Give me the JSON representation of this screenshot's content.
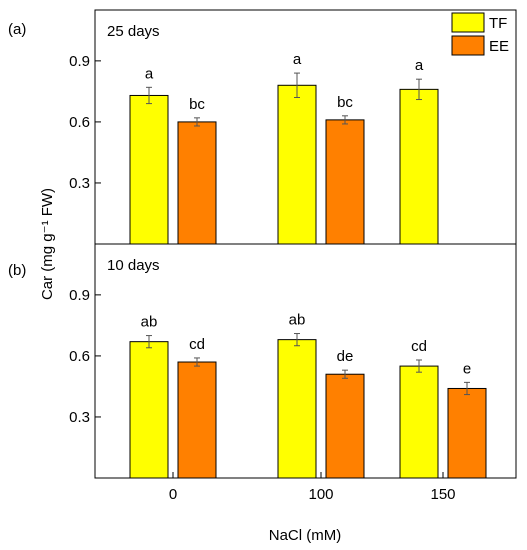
{
  "figure": {
    "y_axis_label": "Car (mg g⁻¹ FW)",
    "x_axis_label": "NaCl (mM)",
    "x_ticks": [
      "0",
      "100",
      "150"
    ],
    "legend": [
      {
        "name": "TF",
        "color": "#ffff00"
      },
      {
        "name": "EE",
        "color": "#ff8000"
      }
    ]
  },
  "chart_data": [
    {
      "type": "bar",
      "panel_label": "(a)",
      "title": "25 days",
      "categories": [
        "0",
        "100",
        "150"
      ],
      "ylim": [
        0,
        1.15
      ],
      "yticks": [
        "0.3",
        "0.6",
        "0.9"
      ],
      "series": [
        {
          "name": "TF",
          "color": "#ffff00",
          "values": [
            0.73,
            0.78,
            0.76
          ],
          "errors": [
            0.04,
            0.06,
            0.05
          ],
          "letters": [
            "a",
            "a",
            "a"
          ]
        },
        {
          "name": "EE",
          "color": "#ff8000",
          "values": [
            0.6,
            0.61,
            null
          ],
          "errors": [
            0.02,
            0.02,
            null
          ],
          "letters": [
            "bc",
            "bc",
            null
          ]
        }
      ],
      "legend_position": "top-right"
    },
    {
      "type": "bar",
      "panel_label": "(b)",
      "title": "10 days",
      "categories": [
        "0",
        "100",
        "150"
      ],
      "ylim": [
        0,
        1.15
      ],
      "yticks": [
        "0.3",
        "0.6",
        "0.9"
      ],
      "series": [
        {
          "name": "TF",
          "color": "#ffff00",
          "values": [
            0.67,
            0.68,
            0.55
          ],
          "errors": [
            0.03,
            0.03,
            0.03
          ],
          "letters": [
            "ab",
            "ab",
            "cd"
          ]
        },
        {
          "name": "EE",
          "color": "#ff8000",
          "values": [
            0.57,
            0.51,
            0.44
          ],
          "errors": [
            0.02,
            0.02,
            0.03
          ],
          "letters": [
            "cd",
            "de",
            "e"
          ]
        }
      ]
    }
  ]
}
